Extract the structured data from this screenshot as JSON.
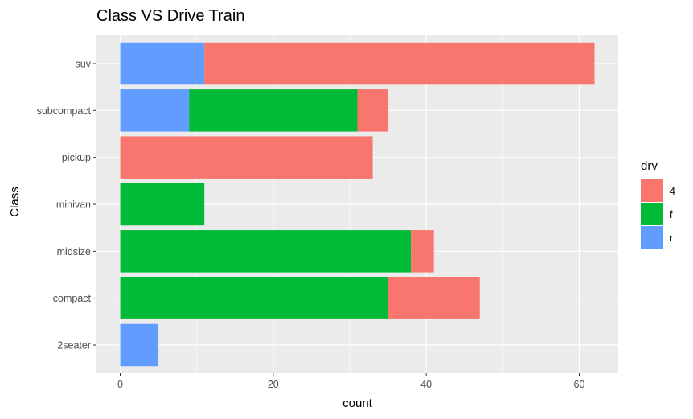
{
  "chart_data": {
    "type": "bar",
    "orientation": "horizontal",
    "stacked": true,
    "title": "Class VS Drive Train",
    "xlabel": "count",
    "ylabel": "Class",
    "xlim": [
      -3.1,
      65.1
    ],
    "x_ticks": [
      "0",
      "20",
      "40",
      "60"
    ],
    "x_tick_values": [
      0,
      20,
      40,
      60
    ],
    "categories": [
      "2seater",
      "compact",
      "midsize",
      "minivan",
      "pickup",
      "subcompact",
      "suv"
    ],
    "stack_order": [
      "r",
      "f",
      "4"
    ],
    "series": [
      {
        "name": "4",
        "color": "#F8766D",
        "values": [
          0,
          12,
          3,
          0,
          33,
          4,
          51
        ]
      },
      {
        "name": "f",
        "color": "#00BA38",
        "values": [
          0,
          35,
          38,
          11,
          0,
          22,
          0
        ]
      },
      {
        "name": "r",
        "color": "#619CFF",
        "values": [
          5,
          0,
          0,
          0,
          0,
          9,
          11
        ]
      }
    ],
    "legend": {
      "title": "drv",
      "position": "right",
      "entries": [
        "4",
        "f",
        "r"
      ]
    },
    "grid": true,
    "panel_background": "#EBEBEB",
    "grid_color": "#FFFFFF"
  }
}
